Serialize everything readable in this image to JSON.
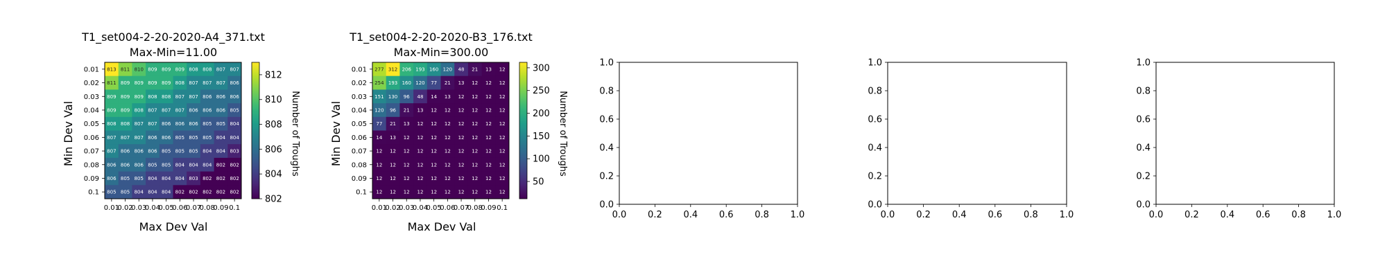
{
  "figure": {
    "subplot_count": 5
  },
  "colormap": {
    "name": "viridis",
    "stops": [
      "#440154",
      "#482878",
      "#3e4a89",
      "#31688e",
      "#26828e",
      "#1f9e89",
      "#35b779",
      "#6ece58",
      "#b5de2b",
      "#fde725"
    ]
  },
  "chart_data": [
    {
      "type": "heatmap",
      "title": "T1_set004-2-20-2020-A4_371.txt",
      "subtitle": "Max-Min=11.00",
      "xlabel": "Max Dev Val",
      "ylabel": "Min Dev Val",
      "x_categories": [
        "0.01",
        "0.02",
        "0.03",
        "0.04",
        "0.05",
        "0.06",
        "0.07",
        "0.08",
        "0.09",
        "0.1"
      ],
      "y_categories": [
        "0.01",
        "0.02",
        "0.03",
        "0.04",
        "0.05",
        "0.06",
        "0.07",
        "0.08",
        "0.09",
        "0.1"
      ],
      "values": [
        [
          813,
          811,
          810,
          809,
          809,
          809,
          808,
          808,
          807,
          807
        ],
        [
          811,
          809,
          809,
          809,
          809,
          808,
          807,
          807,
          807,
          806
        ],
        [
          809,
          809,
          809,
          808,
          808,
          807,
          807,
          806,
          806,
          806
        ],
        [
          809,
          809,
          808,
          807,
          807,
          807,
          806,
          806,
          806,
          805
        ],
        [
          808,
          808,
          807,
          807,
          806,
          806,
          806,
          805,
          805,
          804
        ],
        [
          807,
          807,
          807,
          806,
          806,
          805,
          805,
          805,
          804,
          804
        ],
        [
          807,
          806,
          806,
          806,
          805,
          805,
          805,
          804,
          804,
          803
        ],
        [
          806,
          806,
          806,
          805,
          805,
          804,
          804,
          804,
          802,
          802
        ],
        [
          806,
          805,
          805,
          804,
          804,
          804,
          803,
          802,
          802,
          802
        ],
        [
          805,
          805,
          804,
          804,
          804,
          802,
          802,
          802,
          802,
          802
        ]
      ],
      "vmin": 802,
      "vmax": 813,
      "colorbar": {
        "label": "Number of Troughs",
        "ticks": [
          802,
          804,
          806,
          808,
          810,
          812
        ]
      }
    },
    {
      "type": "heatmap",
      "title": "T1_set004-2-20-2020-B3_176.txt",
      "subtitle": "Max-Min=300.00",
      "xlabel": "Max Dev Val",
      "ylabel": "Min Dev Val",
      "x_categories": [
        "0.01",
        "0.02",
        "0.03",
        "0.04",
        "0.05",
        "0.06",
        "0.07",
        "0.08",
        "0.09",
        "0.1"
      ],
      "y_categories": [
        "0.01",
        "0.02",
        "0.03",
        "0.04",
        "0.05",
        "0.06",
        "0.07",
        "0.08",
        "0.09",
        "0.1"
      ],
      "values": [
        [
          277,
          312,
          206,
          193,
          160,
          120,
          48,
          21,
          13,
          12
        ],
        [
          254,
          193,
          160,
          120,
          77,
          21,
          13,
          12,
          12,
          12
        ],
        [
          151,
          130,
          96,
          48,
          14,
          13,
          12,
          12,
          12,
          12
        ],
        [
          120,
          96,
          21,
          13,
          12,
          12,
          12,
          12,
          12,
          12
        ],
        [
          77,
          21,
          13,
          12,
          12,
          12,
          12,
          12,
          12,
          12
        ],
        [
          14,
          13,
          12,
          12,
          12,
          12,
          12,
          12,
          12,
          12
        ],
        [
          12,
          12,
          12,
          12,
          12,
          12,
          12,
          12,
          12,
          12
        ],
        [
          12,
          12,
          12,
          12,
          12,
          12,
          12,
          12,
          12,
          12
        ],
        [
          12,
          12,
          12,
          12,
          12,
          12,
          12,
          12,
          12,
          12
        ],
        [
          12,
          12,
          12,
          12,
          12,
          12,
          12,
          12,
          12,
          12
        ]
      ],
      "vmin": 12,
      "vmax": 312,
      "colorbar": {
        "label": "Number of Troughs",
        "ticks": [
          50,
          100,
          150,
          200,
          250,
          300
        ]
      }
    },
    {
      "type": "empty",
      "xlim": [
        0,
        1
      ],
      "ylim": [
        0,
        1
      ],
      "xticks": [
        "0.0",
        "0.2",
        "0.4",
        "0.6",
        "0.8",
        "1.0"
      ],
      "yticks": [
        "0.0",
        "0.2",
        "0.4",
        "0.6",
        "0.8",
        "1.0"
      ]
    },
    {
      "type": "empty",
      "xlim": [
        0,
        1
      ],
      "ylim": [
        0,
        1
      ],
      "xticks": [
        "0.0",
        "0.2",
        "0.4",
        "0.6",
        "0.8",
        "1.0"
      ],
      "yticks": [
        "0.0",
        "0.2",
        "0.4",
        "0.6",
        "0.8",
        "1.0"
      ]
    },
    {
      "type": "empty",
      "xlim": [
        0,
        1
      ],
      "ylim": [
        0,
        1
      ],
      "xticks": [
        "0.0",
        "0.2",
        "0.4",
        "0.6",
        "0.8",
        "1.0"
      ],
      "yticks": [
        "0.0",
        "0.2",
        "0.4",
        "0.6",
        "0.8",
        "1.0"
      ]
    }
  ]
}
